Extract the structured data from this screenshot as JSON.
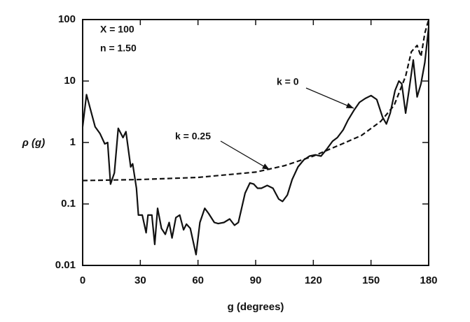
{
  "chart_data": {
    "type": "line",
    "ylog": true,
    "xlabel": "g  (degrees)",
    "ylabel": "ρ (g)",
    "annotations": [
      "X = 100",
      "n = 1.50",
      "k = 0",
      "k = 0.25"
    ],
    "xlim": [
      0,
      180
    ],
    "xticks": [
      0,
      30,
      60,
      90,
      120,
      150,
      180
    ],
    "ylim": [
      0.01,
      100
    ],
    "yticks": [
      0.01,
      0.1,
      1,
      10,
      100
    ],
    "series": [
      {
        "name": "k = 0",
        "color": "#111111",
        "line_style": "solid",
        "x": [
          0,
          2,
          6.5,
          9,
          11.5,
          13,
          14.5,
          16.5,
          18.5,
          21,
          22.5,
          25,
          26,
          28,
          29,
          31,
          33,
          34,
          36,
          37.5,
          39,
          41,
          43,
          45,
          46.5,
          48.5,
          50.5,
          52.5,
          54,
          56,
          59,
          61,
          63.5,
          65.5,
          68.5,
          70.5,
          73.5,
          76.5,
          79,
          81,
          84.5,
          87,
          89,
          91,
          93,
          96,
          99,
          102,
          104,
          106.5,
          109,
          112,
          115,
          118,
          121,
          124,
          127,
          130,
          132.5,
          135.5,
          138,
          141,
          144,
          147,
          150,
          153,
          156,
          158,
          160,
          162.5,
          164.5,
          166,
          168,
          170,
          172,
          174,
          176,
          178,
          180
        ],
        "values": [
          1.8,
          6,
          1.8,
          1.4,
          0.95,
          1.0,
          0.21,
          0.32,
          1.7,
          1.2,
          1.5,
          0.4,
          0.45,
          0.18,
          0.066,
          0.066,
          0.034,
          0.066,
          0.066,
          0.022,
          0.085,
          0.04,
          0.032,
          0.05,
          0.028,
          0.06,
          0.066,
          0.038,
          0.047,
          0.04,
          0.015,
          0.05,
          0.085,
          0.07,
          0.05,
          0.048,
          0.05,
          0.057,
          0.045,
          0.05,
          0.15,
          0.22,
          0.21,
          0.18,
          0.18,
          0.2,
          0.18,
          0.12,
          0.11,
          0.14,
          0.25,
          0.4,
          0.52,
          0.6,
          0.63,
          0.6,
          0.78,
          1.05,
          1.2,
          1.6,
          2.3,
          3.3,
          4.5,
          5.2,
          5.8,
          5,
          2.6,
          2.0,
          3.0,
          7,
          10,
          9,
          3,
          8,
          22,
          5.5,
          9,
          20,
          75
        ]
      },
      {
        "name": "k = 0.25",
        "color": "#111111",
        "line_style": "dashed",
        "x": [
          0,
          30,
          60,
          90,
          105,
          120,
          135,
          145,
          155,
          162,
          168,
          171,
          174,
          176,
          178,
          180
        ],
        "values": [
          0.24,
          0.25,
          0.27,
          0.33,
          0.42,
          0.6,
          0.95,
          1.3,
          2.2,
          4,
          12,
          30,
          38,
          25,
          60,
          100
        ]
      }
    ]
  }
}
